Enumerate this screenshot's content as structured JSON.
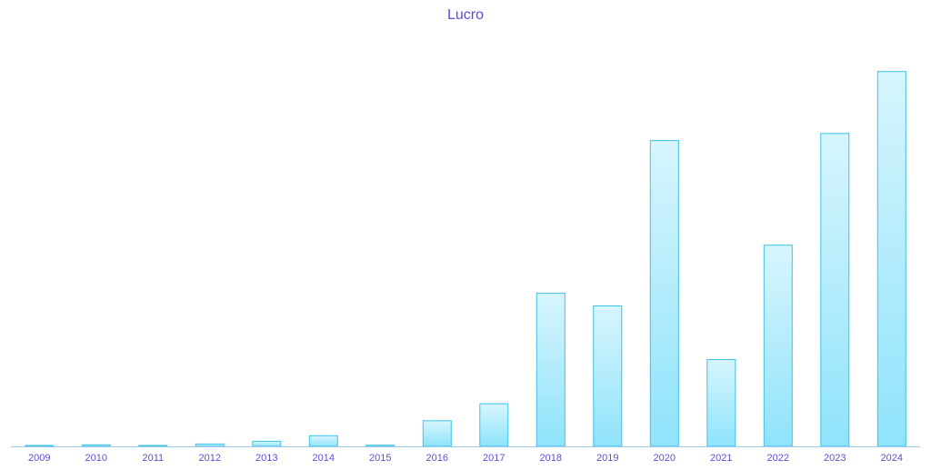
{
  "chart_data": {
    "type": "bar",
    "title": "Lucro",
    "xlabel": "",
    "ylabel": "",
    "categories": [
      "2009",
      "2010",
      "2011",
      "2012",
      "2013",
      "2014",
      "2015",
      "2016",
      "2017",
      "2018",
      "2019",
      "2020",
      "2021",
      "2022",
      "2023",
      "2024"
    ],
    "values": [
      0.1,
      0.4,
      0.1,
      0.6,
      1.3,
      2.7,
      0.3,
      6.5,
      10.8,
      38.8,
      35.6,
      77.5,
      22.0,
      51.0,
      79.3,
      95.0
    ],
    "ylim": [
      0,
      100
    ],
    "grid": false,
    "legend": "none",
    "colors": {
      "bar_fill_top": "#d7f5fd",
      "bar_fill_bottom": "#8fe3fb",
      "bar_stroke": "#3cc3e6",
      "axis": "#9ec9ea",
      "text": "#5b4fcf"
    }
  }
}
